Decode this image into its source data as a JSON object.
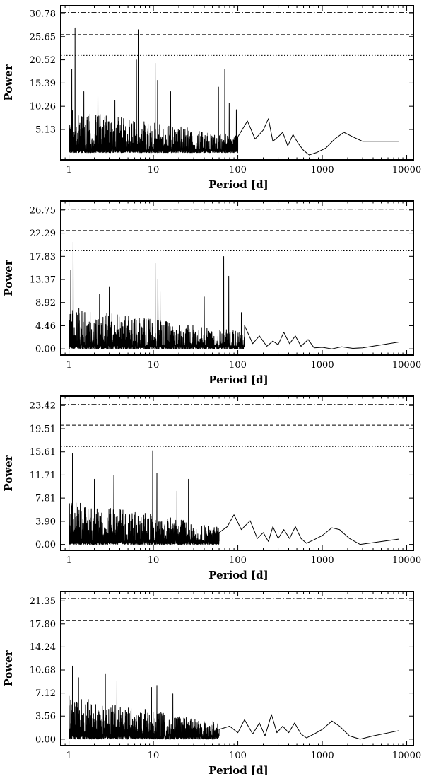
{
  "chart_data": [
    {
      "type": "line",
      "xlabel": "Period [d]",
      "ylabel": "Power",
      "xscale": "log",
      "xlim": [
        0.8,
        12000
      ],
      "ylim": [
        -1.6,
        32.5
      ],
      "x_ticks": [
        1,
        10,
        100,
        1000,
        10000
      ],
      "x_tick_labels": [
        "1",
        "10",
        "100",
        "1000",
        "10000"
      ],
      "y_ticks": [
        5.13,
        10.26,
        15.39,
        20.52,
        25.65,
        30.78
      ],
      "y_tick_labels": [
        "5.13",
        "10.26",
        "15.39",
        "20.52",
        "25.65",
        "30.78"
      ],
      "fap_levels": [
        {
          "style": "dotted",
          "y": 21.5
        },
        {
          "style": "dashed",
          "y": 26.1
        },
        {
          "style": "dashdot",
          "y": 31.0
        }
      ],
      "base_level": 0.0,
      "noise_scale": 1.0,
      "peaks": [
        [
          1.08,
          18.5
        ],
        [
          1.18,
          27.6
        ],
        [
          1.5,
          13.5
        ],
        [
          2.2,
          12.8
        ],
        [
          3.5,
          11.5
        ],
        [
          6.6,
          27.2
        ],
        [
          6.3,
          20.5
        ],
        [
          10.5,
          19.8
        ],
        [
          11.2,
          16.0
        ],
        [
          16.0,
          13.5
        ],
        [
          59,
          14.5
        ],
        [
          70,
          18.5
        ],
        [
          79,
          11.0
        ],
        [
          96,
          9.5
        ]
      ],
      "smooth": [
        [
          100,
          3.5
        ],
        [
          130,
          7.0
        ],
        [
          160,
          3.0
        ],
        [
          200,
          5.0
        ],
        [
          230,
          7.5
        ],
        [
          260,
          2.5
        ],
        [
          300,
          3.5
        ],
        [
          340,
          4.5
        ],
        [
          390,
          1.5
        ],
        [
          450,
          4.0
        ],
        [
          520,
          2.0
        ],
        [
          600,
          0.5
        ],
        [
          700,
          -0.5
        ],
        [
          850,
          0.0
        ],
        [
          1100,
          1.0
        ],
        [
          1400,
          3.0
        ],
        [
          1800,
          4.5
        ],
        [
          2300,
          3.5
        ],
        [
          3000,
          2.5
        ],
        [
          8000,
          2.5
        ]
      ]
    },
    {
      "type": "line",
      "xlabel": "Period [d]",
      "ylabel": "Power",
      "xscale": "log",
      "xlim": [
        0.8,
        12000
      ],
      "ylim": [
        -1.2,
        28.5
      ],
      "x_ticks": [
        1,
        10,
        100,
        1000,
        10000
      ],
      "x_tick_labels": [
        "1",
        "10",
        "100",
        "1000",
        "10000"
      ],
      "y_ticks": [
        0.0,
        4.46,
        8.92,
        13.37,
        17.83,
        22.29,
        26.75
      ],
      "y_tick_labels": [
        "0.00",
        "4.46",
        "8.92",
        "13.37",
        "17.83",
        "22.29",
        "26.75"
      ],
      "fap_levels": [
        {
          "style": "dotted",
          "y": 18.9
        },
        {
          "style": "dashed",
          "y": 22.8
        },
        {
          "style": "dashdot",
          "y": 26.9
        }
      ],
      "base_level": 0.0,
      "noise_scale": 0.85,
      "peaks": [
        [
          1.05,
          15.2
        ],
        [
          1.12,
          20.6
        ],
        [
          2.3,
          10.5
        ],
        [
          3.0,
          12.0
        ],
        [
          10.5,
          16.5
        ],
        [
          11.3,
          13.5
        ],
        [
          12.0,
          11.0
        ],
        [
          40,
          10.0
        ],
        [
          68,
          17.8
        ],
        [
          78,
          14.0
        ],
        [
          110,
          7.0
        ]
      ],
      "smooth": [
        [
          120,
          4.5
        ],
        [
          150,
          1.0
        ],
        [
          180,
          2.5
        ],
        [
          220,
          0.5
        ],
        [
          260,
          1.5
        ],
        [
          300,
          0.8
        ],
        [
          350,
          3.2
        ],
        [
          410,
          1.0
        ],
        [
          480,
          2.5
        ],
        [
          560,
          0.5
        ],
        [
          680,
          1.8
        ],
        [
          800,
          0.2
        ],
        [
          1000,
          0.3
        ],
        [
          1300,
          0.0
        ],
        [
          1700,
          0.4
        ],
        [
          2300,
          0.1
        ],
        [
          3000,
          0.2
        ],
        [
          8000,
          1.3
        ]
      ]
    },
    {
      "type": "line",
      "xlabel": "Period [d]",
      "ylabel": "Power",
      "xscale": "log",
      "xlim": [
        0.8,
        12000
      ],
      "ylim": [
        -1.0,
        25.0
      ],
      "x_ticks": [
        1,
        10,
        100,
        1000,
        10000
      ],
      "x_tick_labels": [
        "1",
        "10",
        "100",
        "1000",
        "10000"
      ],
      "y_ticks": [
        0.0,
        3.9,
        7.81,
        11.71,
        15.61,
        19.51,
        23.42
      ],
      "y_tick_labels": [
        "0.00",
        "3.90",
        "7.81",
        "11.71",
        "15.61",
        "19.51",
        "23.42"
      ],
      "fap_levels": [
        {
          "style": "dotted",
          "y": 16.5
        },
        {
          "style": "dashed",
          "y": 20.1
        },
        {
          "style": "dashdot",
          "y": 23.6
        }
      ],
      "base_level": 0.0,
      "noise_scale": 0.8,
      "peaks": [
        [
          1.1,
          15.3
        ],
        [
          2.0,
          11.0
        ],
        [
          3.4,
          11.7
        ],
        [
          9.8,
          15.8
        ],
        [
          11.0,
          12.0
        ],
        [
          26,
          11.0
        ],
        [
          19,
          9.0
        ]
      ],
      "smooth": [
        [
          60,
          2.0
        ],
        [
          75,
          3.0
        ],
        [
          90,
          5.0
        ],
        [
          110,
          2.5
        ],
        [
          140,
          4.0
        ],
        [
          170,
          1.0
        ],
        [
          200,
          2.0
        ],
        [
          230,
          0.5
        ],
        [
          260,
          3.0
        ],
        [
          300,
          1.0
        ],
        [
          350,
          2.5
        ],
        [
          410,
          1.0
        ],
        [
          480,
          3.0
        ],
        [
          560,
          1.0
        ],
        [
          650,
          0.2
        ],
        [
          800,
          0.8
        ],
        [
          1000,
          1.5
        ],
        [
          1300,
          2.8
        ],
        [
          1600,
          2.5
        ],
        [
          2100,
          1.0
        ],
        [
          2800,
          0.0
        ],
        [
          4000,
          0.3
        ],
        [
          8000,
          0.9
        ]
      ]
    },
    {
      "type": "line",
      "xlabel": "Period [d]",
      "ylabel": "Power",
      "xscale": "log",
      "xlim": [
        0.8,
        12000
      ],
      "ylim": [
        -1.0,
        22.8
      ],
      "x_ticks": [
        1,
        10,
        100,
        1000,
        10000
      ],
      "x_tick_labels": [
        "1",
        "10",
        "100",
        "1000",
        "10000"
      ],
      "y_ticks": [
        0.0,
        3.56,
        7.12,
        10.68,
        14.24,
        17.8,
        21.35
      ],
      "y_tick_labels": [
        "0.00",
        "3.56",
        "7.12",
        "10.68",
        "14.24",
        "17.80",
        "21.35"
      ],
      "fap_levels": [
        {
          "style": "dotted",
          "y": 15.0
        },
        {
          "style": "dashed",
          "y": 18.3
        },
        {
          "style": "dashdot",
          "y": 21.7
        }
      ],
      "base_level": 0.0,
      "noise_scale": 0.7,
      "peaks": [
        [
          1.1,
          11.3
        ],
        [
          1.3,
          9.5
        ],
        [
          2.7,
          10.0
        ],
        [
          3.7,
          9.0
        ],
        [
          9.5,
          8.0
        ],
        [
          11.0,
          8.2
        ],
        [
          17,
          7.0
        ]
      ],
      "smooth": [
        [
          60,
          1.5
        ],
        [
          80,
          2.0
        ],
        [
          100,
          1.0
        ],
        [
          120,
          3.0
        ],
        [
          150,
          0.8
        ],
        [
          180,
          2.5
        ],
        [
          210,
          0.5
        ],
        [
          250,
          3.8
        ],
        [
          290,
          1.0
        ],
        [
          340,
          2.0
        ],
        [
          400,
          1.0
        ],
        [
          470,
          2.5
        ],
        [
          560,
          0.8
        ],
        [
          650,
          0.2
        ],
        [
          800,
          0.8
        ],
        [
          1000,
          1.5
        ],
        [
          1300,
          2.8
        ],
        [
          1600,
          2.0
        ],
        [
          2100,
          0.5
        ],
        [
          2800,
          0.0
        ],
        [
          4000,
          0.5
        ],
        [
          8000,
          1.3
        ]
      ]
    }
  ]
}
